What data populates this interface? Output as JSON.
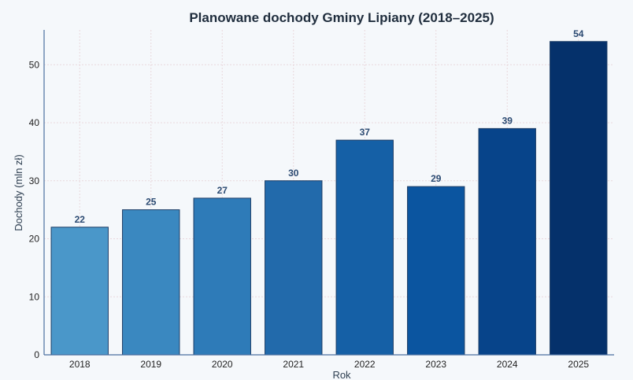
{
  "chart_data": {
    "type": "bar",
    "title": "Planowane dochody Gminy Lipiany (2018–2025)",
    "xlabel": "Rok",
    "ylabel": "Dochody (mln zł)",
    "categories": [
      "2018",
      "2019",
      "2020",
      "2021",
      "2022",
      "2023",
      "2024",
      "2025"
    ],
    "values": [
      22,
      25,
      27,
      30,
      37,
      29,
      39,
      54
    ],
    "ylim": [
      0,
      56
    ],
    "yticks": [
      0,
      10,
      20,
      30,
      40,
      50
    ],
    "grid": true,
    "data_labels": true,
    "bar_colors": [
      "#4a97c9",
      "#3a88c0",
      "#2e7bb8",
      "#226aab",
      "#1560a6",
      "#0b55a0",
      "#07448a",
      "#05316b"
    ]
  }
}
